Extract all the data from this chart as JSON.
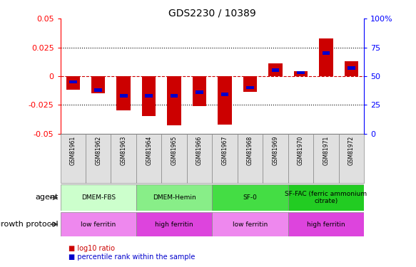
{
  "title": "GDS2230 / 10389",
  "samples": [
    "GSM81961",
    "GSM81962",
    "GSM81963",
    "GSM81964",
    "GSM81965",
    "GSM81966",
    "GSM81967",
    "GSM81968",
    "GSM81969",
    "GSM81970",
    "GSM81971",
    "GSM81972"
  ],
  "log10_ratio": [
    -0.012,
    -0.015,
    -0.03,
    -0.035,
    -0.043,
    -0.026,
    -0.042,
    -0.014,
    0.011,
    0.004,
    0.033,
    0.013
  ],
  "percentile_rank": [
    45,
    38,
    33,
    33,
    33,
    36,
    34,
    40,
    55,
    53,
    70,
    57
  ],
  "ylim": [
    -0.05,
    0.05
  ],
  "right_ylim": [
    0,
    100
  ],
  "right_yticks": [
    0,
    25,
    50,
    75,
    100
  ],
  "right_yticklabels": [
    "0",
    "25",
    "50",
    "75",
    "100%"
  ],
  "left_yticks": [
    -0.05,
    -0.025,
    0,
    0.025,
    0.05
  ],
  "left_yticklabels": [
    "-0.05",
    "-0.025",
    "0",
    "0.025",
    "0.05"
  ],
  "bar_color": "#cc0000",
  "pct_color": "#0000cc",
  "bar_width": 0.55,
  "pct_bar_height": 0.002,
  "agent_groups": [
    {
      "label": "DMEM-FBS",
      "start": 0,
      "end": 3,
      "color": "#ccffcc"
    },
    {
      "label": "DMEM-Hemin",
      "start": 3,
      "end": 6,
      "color": "#88ee88"
    },
    {
      "label": "SF-0",
      "start": 6,
      "end": 9,
      "color": "#44dd44"
    },
    {
      "label": "SF-FAC (ferric ammonium\ncitrate)",
      "start": 9,
      "end": 12,
      "color": "#22cc22"
    }
  ],
  "growth_groups": [
    {
      "label": "low ferritin",
      "start": 0,
      "end": 3,
      "color": "#ee88ee"
    },
    {
      "label": "high ferritin",
      "start": 3,
      "end": 6,
      "color": "#dd44dd"
    },
    {
      "label": "low ferritin",
      "start": 6,
      "end": 9,
      "color": "#ee88ee"
    },
    {
      "label": "high ferritin",
      "start": 9,
      "end": 12,
      "color": "#dd44dd"
    }
  ],
  "legend_items": [
    {
      "label": "log10 ratio",
      "color": "#cc0000"
    },
    {
      "label": "percentile rank within the sample",
      "color": "#0000cc"
    }
  ],
  "agent_label": "agent",
  "growth_label": "growth protocol",
  "bg_color": "#ffffff",
  "axis_bg": "#ffffff"
}
